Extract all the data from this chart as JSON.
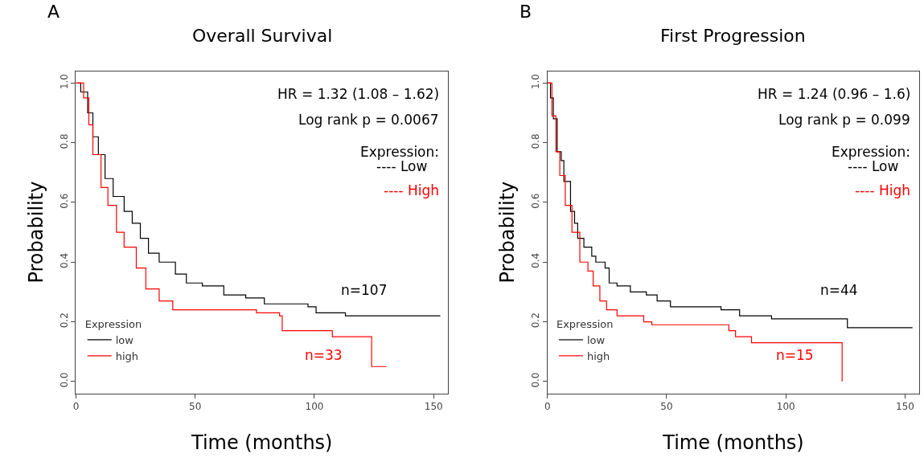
{
  "chart_data": [
    {
      "type": "step",
      "title": "Overall Survival",
      "xlabel": "Time (months)",
      "ylabel": "Probability",
      "legend_title": "Expression",
      "legend": "bottom left",
      "marker": "none",
      "line_style": "solid",
      "annotations": [
        "A",
        "HR = 1.32 (1.08 – 1.62)",
        "Log rank p = 0.0067",
        "Expression:",
        "---- Low",
        "---- High",
        "n=107",
        "n=33"
      ],
      "xlim": [
        0,
        156
      ],
      "xticks": [
        0,
        50,
        100,
        150
      ],
      "ylim": [
        -0.04,
        1.04
      ],
      "yticks": [
        {
          "value": 0,
          "label": "0.0"
        },
        {
          "value": 0.2,
          "label": "0.2"
        },
        {
          "value": 0.4,
          "label": "0.4"
        },
        {
          "value": 0.6,
          "label": "0.6"
        },
        {
          "value": 0.8,
          "label": "0.8"
        },
        {
          "value": 1,
          "label": "1.0"
        }
      ],
      "series": [
        {
          "name": "low",
          "color": "#000000",
          "x": [
            0,
            2,
            4.9,
            7.1,
            9.4,
            12.2,
            15.6,
            20.2,
            23.6,
            27,
            30.4,
            34.9,
            41.7,
            46.3,
            53,
            62,
            71.2,
            79,
            97.3,
            100.7,
            113,
            152.8
          ],
          "values": [
            1,
            0.97,
            0.9,
            0.82,
            0.76,
            0.68,
            0.62,
            0.57,
            0.53,
            0.48,
            0.43,
            0.4,
            0.36,
            0.33,
            0.32,
            0.29,
            0.28,
            0.26,
            0.25,
            0.23,
            0.22,
            0.22
          ]
        },
        {
          "name": "high",
          "color": "#ff0000",
          "x": [
            0,
            3.2,
            5.4,
            7.1,
            10.5,
            13.4,
            17,
            20.2,
            25.3,
            29.3,
            34.9,
            40.6,
            75.7,
            85.4,
            86.5,
            107.5,
            124,
            130.2
          ],
          "values": [
            1,
            0.95,
            0.86,
            0.76,
            0.65,
            0.59,
            0.5,
            0.45,
            0.38,
            0.31,
            0.27,
            0.24,
            0.23,
            0.22,
            0.17,
            0.15,
            0.05,
            0.05
          ]
        }
      ]
    },
    {
      "type": "step",
      "title": "First Progression",
      "xlabel": "Time (months)",
      "ylabel": "Probability",
      "legend_title": "Expression",
      "legend": "bottom left",
      "marker": "none",
      "line_style": "solid",
      "annotations": [
        "B",
        "HR = 1.24 (0.96 – 1.6)",
        "Log rank p = 0.099",
        "Expression:",
        "---- Low",
        "---- High",
        "n=44",
        "n=15"
      ],
      "xlim": [
        0,
        156
      ],
      "xticks": [
        0,
        50,
        100,
        150
      ],
      "ylim": [
        -0.04,
        1.04
      ],
      "yticks": [
        {
          "value": 0,
          "label": "0.0"
        },
        {
          "value": 0.2,
          "label": "0.2"
        },
        {
          "value": 0.4,
          "label": "0.4"
        },
        {
          "value": 0.6,
          "label": "0.6"
        },
        {
          "value": 0.8,
          "label": "0.8"
        },
        {
          "value": 1,
          "label": "1.0"
        }
      ],
      "series": [
        {
          "name": "low",
          "color": "#000000",
          "x": [
            0,
            1.3,
            2.5,
            4.1,
            5.8,
            6.9,
            9.7,
            11.4,
            12.7,
            15.3,
            18.6,
            20.3,
            24.2,
            25.9,
            29.2,
            34.8,
            41.5,
            46,
            51.6,
            72.8,
            80.6,
            94,
            125.8,
            153.1
          ],
          "values": [
            1,
            0.95,
            0.88,
            0.77,
            0.74,
            0.67,
            0.57,
            0.53,
            0.48,
            0.45,
            0.42,
            0.4,
            0.38,
            0.33,
            0.32,
            0.3,
            0.29,
            0.27,
            0.25,
            0.24,
            0.22,
            0.21,
            0.18,
            0.18
          ]
        },
        {
          "name": "high",
          "color": "#ff0000",
          "x": [
            0,
            1.9,
            3.6,
            5.2,
            7.5,
            10.3,
            13.6,
            17,
            19.2,
            22,
            24.8,
            29.2,
            40.4,
            43.8,
            76.1,
            78.9,
            85.6,
            123.6
          ],
          "values": [
            1,
            0.89,
            0.77,
            0.69,
            0.59,
            0.5,
            0.4,
            0.37,
            0.32,
            0.27,
            0.24,
            0.22,
            0.2,
            0.19,
            0.17,
            0.15,
            0.13,
            0.0
          ]
        }
      ]
    }
  ]
}
